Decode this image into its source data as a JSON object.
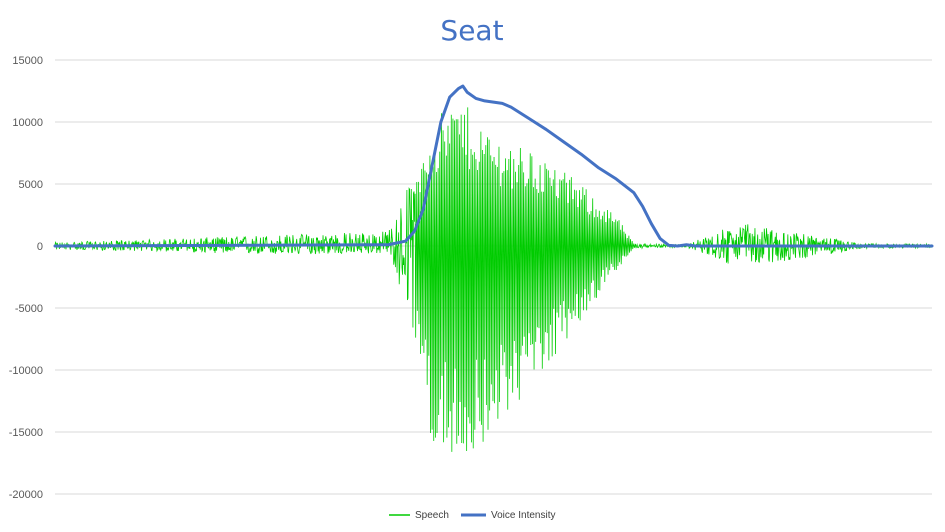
{
  "chart_data": {
    "type": "line",
    "title": "Seat",
    "xlabel": "",
    "ylabel": "",
    "ylim": [
      -20000,
      15000
    ],
    "yticks": [
      15000,
      10000,
      5000,
      0,
      -5000,
      -10000,
      -15000,
      -20000
    ],
    "grid": true,
    "legend_position": "bottom",
    "series": [
      {
        "name": "Speech",
        "color": "#00CC00",
        "description_points": [
          {
            "x": 0.0,
            "min": -300,
            "max": 300
          },
          {
            "x": 0.1,
            "min": -400,
            "max": 500
          },
          {
            "x": 0.25,
            "min": -700,
            "max": 900
          },
          {
            "x": 0.38,
            "min": -600,
            "max": 1200
          },
          {
            "x": 0.41,
            "min": -7000,
            "max": 6000
          },
          {
            "x": 0.43,
            "min": -16000,
            "max": 10000
          },
          {
            "x": 0.46,
            "min": -18000,
            "max": 12000
          },
          {
            "x": 0.5,
            "min": -15000,
            "max": 9000
          },
          {
            "x": 0.55,
            "min": -11000,
            "max": 7500
          },
          {
            "x": 0.6,
            "min": -6000,
            "max": 5000
          },
          {
            "x": 0.64,
            "min": -2000,
            "max": 2500
          },
          {
            "x": 0.66,
            "min": -200,
            "max": 200
          },
          {
            "x": 0.72,
            "min": -100,
            "max": 100
          },
          {
            "x": 0.78,
            "min": -1800,
            "max": 1900
          },
          {
            "x": 0.86,
            "min": -900,
            "max": 900
          },
          {
            "x": 0.92,
            "min": -200,
            "max": 200
          },
          {
            "x": 1.0,
            "min": -150,
            "max": 150
          }
        ]
      },
      {
        "name": "Voice Intensity",
        "color": "#4472C4",
        "points": [
          [
            0.0,
            0
          ],
          [
            0.38,
            100
          ],
          [
            0.4,
            400
          ],
          [
            0.41,
            1200
          ],
          [
            0.42,
            3000
          ],
          [
            0.43,
            6500
          ],
          [
            0.44,
            10000
          ],
          [
            0.45,
            12000
          ],
          [
            0.46,
            12700
          ],
          [
            0.465,
            12900
          ],
          [
            0.47,
            12400
          ],
          [
            0.48,
            11900
          ],
          [
            0.49,
            11700
          ],
          [
            0.5,
            11600
          ],
          [
            0.51,
            11500
          ],
          [
            0.52,
            11200
          ],
          [
            0.54,
            10300
          ],
          [
            0.56,
            9400
          ],
          [
            0.58,
            8400
          ],
          [
            0.6,
            7400
          ],
          [
            0.62,
            6300
          ],
          [
            0.64,
            5400
          ],
          [
            0.66,
            4300
          ],
          [
            0.67,
            3200
          ],
          [
            0.68,
            1800
          ],
          [
            0.69,
            600
          ],
          [
            0.7,
            50
          ],
          [
            0.71,
            0
          ],
          [
            0.72,
            100
          ],
          [
            0.73,
            0
          ],
          [
            1.0,
            0
          ]
        ]
      }
    ]
  }
}
